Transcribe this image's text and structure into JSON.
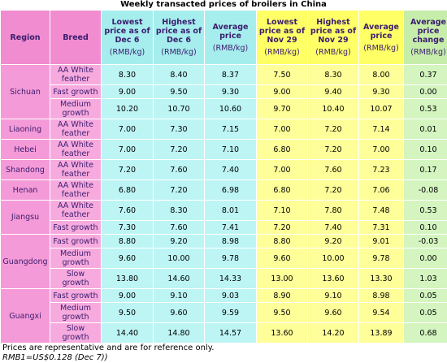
{
  "title": "Weekly transacted prices of broilers in China",
  "table": {
    "columns": [
      {
        "label": "Region"
      },
      {
        "label": "Breed"
      },
      {
        "label": "Lowest price as of Dec 6",
        "unit": "(RMB/kg)"
      },
      {
        "label": "Highest price as of Dec 6",
        "unit": "(RMB/kg)"
      },
      {
        "label": "Average price",
        "unit": "(RMB/kg)"
      },
      {
        "label": "Lowest price as of Nov 29",
        "unit": "(RMB/kg)"
      },
      {
        "label": "Highest price as of Nov 29",
        "unit": "(RMB/kg)"
      },
      {
        "label": "Average price",
        "unit": "(RMB/kg)"
      },
      {
        "label": "Average price change",
        "unit": "(RMB/kg)"
      }
    ],
    "groups": [
      {
        "region": "Sichuan",
        "rows": [
          {
            "breed": "AA White feather",
            "values": [
              "8.30",
              "8.40",
              "8.37",
              "7.50",
              "8.30",
              "8.00",
              "0.37"
            ]
          },
          {
            "breed": "Fast growth",
            "values": [
              "9.00",
              "9.50",
              "9.30",
              "9.00",
              "9.40",
              "9.30",
              "0.00"
            ]
          },
          {
            "breed": "Medium growth",
            "values": [
              "10.20",
              "10.70",
              "10.60",
              "9.70",
              "10.40",
              "10.07",
              "0.53"
            ]
          }
        ]
      },
      {
        "region": "Liaoning",
        "rows": [
          {
            "breed": "AA White feather",
            "values": [
              "7.00",
              "7.30",
              "7.15",
              "7.00",
              "7.20",
              "7.14",
              "0.01"
            ]
          }
        ]
      },
      {
        "region": "Hebei",
        "rows": [
          {
            "breed": "AA White feather",
            "values": [
              "7.00",
              "7.20",
              "7.10",
              "6.80",
              "7.20",
              "7.00",
              "0.10"
            ]
          }
        ]
      },
      {
        "region": "Shandong",
        "rows": [
          {
            "breed": "AA White feather",
            "values": [
              "7.20",
              "7.60",
              "7.40",
              "7.00",
              "7.60",
              "7.23",
              "0.17"
            ]
          }
        ]
      },
      {
        "region": "Henan",
        "rows": [
          {
            "breed": "AA White feather",
            "values": [
              "6.80",
              "7.20",
              "6.98",
              "6.80",
              "7.20",
              "7.06",
              "-0.08"
            ]
          }
        ]
      },
      {
        "region": "Jiangsu",
        "rows": [
          {
            "breed": "AA White feather",
            "values": [
              "7.60",
              "8.30",
              "8.01",
              "7.10",
              "7.80",
              "7.48",
              "0.53"
            ]
          },
          {
            "breed": "Fast growth",
            "values": [
              "7.30",
              "7.60",
              "7.41",
              "7.20",
              "7.40",
              "7.31",
              "0.10"
            ]
          }
        ]
      },
      {
        "region": "Guangdong",
        "rows": [
          {
            "breed": "Fast growth",
            "values": [
              "8.80",
              "9.20",
              "8.98",
              "8.80",
              "9.20",
              "9.01",
              "-0.03"
            ]
          },
          {
            "breed": "Medium growth",
            "values": [
              "9.60",
              "10.00",
              "9.78",
              "9.60",
              "10.00",
              "9.78",
              "0.00"
            ]
          },
          {
            "breed": "Slow growth",
            "values": [
              "13.80",
              "14.60",
              "14.33",
              "13.00",
              "13.60",
              "13.30",
              "1.03"
            ]
          }
        ]
      },
      {
        "region": "Guangxi",
        "rows": [
          {
            "breed": "Fast growth",
            "values": [
              "9.00",
              "9.10",
              "9.03",
              "8.90",
              "9.10",
              "8.98",
              "0.05"
            ]
          },
          {
            "breed": "Medium growth",
            "values": [
              "9.50",
              "9.60",
              "9.59",
              "9.50",
              "9.60",
              "9.54",
              "0.05"
            ]
          },
          {
            "breed": "Slow growth",
            "values": [
              "14.40",
              "14.80",
              "14.57",
              "13.60",
              "14.20",
              "13.89",
              "0.68"
            ]
          }
        ]
      }
    ]
  },
  "notes": [
    "Prices are representative and are for reference only.",
    "RMB1=US$0.128 (Dec 7))"
  ]
}
